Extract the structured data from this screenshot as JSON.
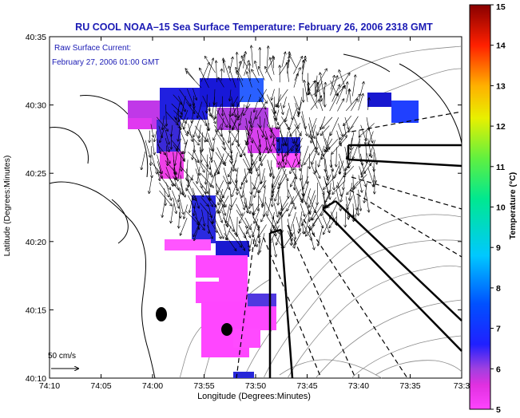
{
  "chart_data": {
    "type": "heatmap",
    "title": "RU COOL  NOAA–15  Sea Surface Temperature:  February 26, 2006 2318 GMT",
    "annotation": {
      "line1": "Raw Surface Current:",
      "line2": "February 27, 2006 01:00 GMT"
    },
    "scale_label": "50 cm/s",
    "xlabel": "Longitude (Degrees:Minutes)",
    "ylabel": "Latitude (Degrees:Minutes)",
    "x_ticks": [
      "74:10",
      "74:05",
      "74:00",
      "73:55",
      "73:50",
      "73:45",
      "73:40",
      "73:35",
      "73:3"
    ],
    "y_ticks": [
      "40:35",
      "40:30",
      "40:25",
      "40:20",
      "40:15",
      "40:10"
    ],
    "colorbar": {
      "label": "Temperature (°C)",
      "min": 5,
      "max": 15,
      "ticks": [
        "15",
        "14",
        "13",
        "12",
        "11",
        "10",
        "9",
        "8",
        "7",
        "6",
        "5"
      ]
    },
    "colors": {
      "axis": "#000000",
      "title": "#1a1ab4",
      "annotation": "#1a1ab4",
      "sst_cold": "#ff33ff",
      "sst_warm": "#1010d0",
      "vectors": "#000000"
    }
  }
}
